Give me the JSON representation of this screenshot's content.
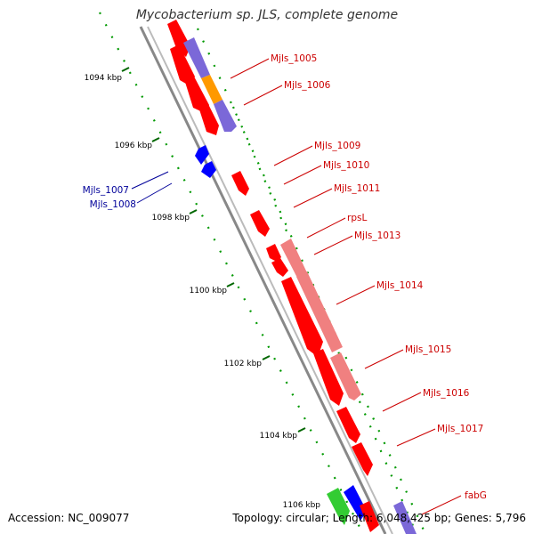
{
  "header": {
    "title": "Mycobacterium sp. JLS, complete genome"
  },
  "footer": {
    "accession": "Accession: NC_009077",
    "summary": "Topology: circular; Length: 6,048,425 bp; Genes: 5,796"
  },
  "ruler": {
    "ticks": [
      "1094 kbp",
      "1096 kbp",
      "1098 kbp",
      "1100 kbp",
      "1102 kbp",
      "1104 kbp",
      "1106 kbp"
    ]
  },
  "genes": {
    "forward": [
      "Mjls_1005",
      "Mjls_1006",
      "Mjls_1009",
      "Mjls_1010",
      "Mjls_1011",
      "rpsL",
      "Mjls_1013",
      "Mjls_1014",
      "Mjls_1015",
      "Mjls_1016",
      "Mjls_1017",
      "fabG"
    ],
    "reverse": [
      "Mjls_1007",
      "Mjls_1008"
    ]
  },
  "colors": {
    "gene_red": "#ff0000",
    "gene_pink": "#f08080",
    "gene_purple": "#7b68d8",
    "gene_orange": "#ff9900",
    "gene_blue": "#0000ff",
    "gene_green": "#33cc33",
    "label_red": "#cc0000",
    "label_blue": "#000099",
    "backbone": "#808080",
    "tick_green": "#006600"
  }
}
